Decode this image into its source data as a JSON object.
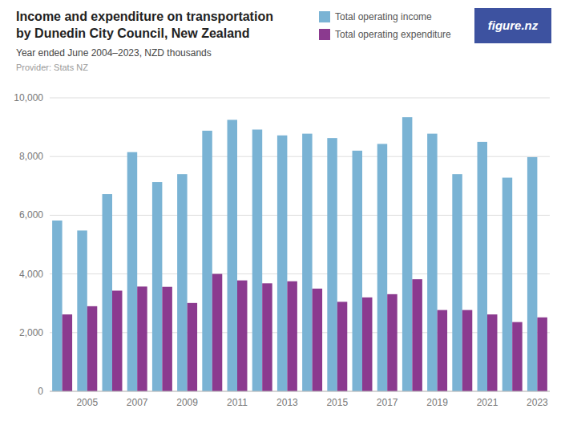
{
  "chart_data": {
    "type": "bar",
    "title": [
      "Income and expenditure on transportation",
      "by Dunedin City Council, New Zealand"
    ],
    "subtitle": "Year ended June 2004–2023, NZD thousands",
    "annotations": [
      "Provider: Stats NZ",
      "figure.nz"
    ],
    "categories": [
      null,
      "2005",
      null,
      "2007",
      null,
      "2009",
      null,
      "2011",
      null,
      "2013",
      null,
      "2015",
      null,
      "2017",
      null,
      "2019",
      null,
      "2021",
      null,
      "2023"
    ],
    "series": [
      {
        "name": "Total operating income",
        "color": "#7ab3d4",
        "values": [
          5820,
          5480,
          6720,
          8150,
          7130,
          7400,
          8880,
          9250,
          8920,
          8720,
          8780,
          8630,
          8200,
          8430,
          9340,
          8780,
          7400,
          8500,
          7280,
          7980
        ]
      },
      {
        "name": "Total operating expenditure",
        "color": "#8b3a8f",
        "values": [
          2620,
          2900,
          3430,
          3570,
          3560,
          3010,
          4000,
          3780,
          3680,
          3750,
          3500,
          3050,
          3200,
          3310,
          3820,
          2770,
          2770,
          2620,
          2360,
          2520
        ]
      }
    ],
    "ylim": [
      0,
      10000
    ],
    "yticks": [
      0,
      {
        "value": 2000,
        "label": "2,000"
      },
      {
        "value": 4000,
        "label": "4,000"
      },
      {
        "value": 6000,
        "label": "6,000"
      },
      {
        "value": 8000,
        "label": "8,000"
      },
      {
        "value": 10000,
        "label": "10,000"
      }
    ],
    "grid": true,
    "legend": "upper right"
  }
}
